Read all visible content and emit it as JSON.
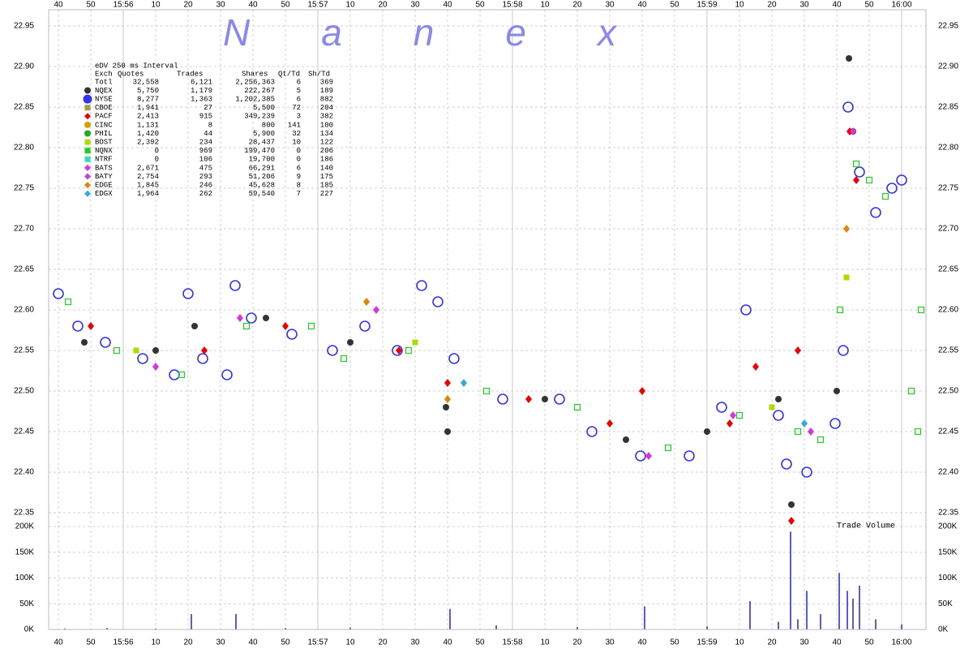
{
  "chart_data": [
    {
      "type": "scatter",
      "watermark": "Nanex",
      "xlim": [
        37,
        307.5
      ],
      "xticks": [
        40,
        50,
        {
          "value": 60,
          "label": "15:56"
        },
        {
          "value": 70,
          "label": "10"
        },
        {
          "value": 80,
          "label": "20"
        },
        {
          "value": 90,
          "label": "30"
        },
        {
          "value": 100,
          "label": "40"
        },
        {
          "value": 110,
          "label": "50"
        },
        {
          "value": 120,
          "label": "15:57"
        },
        {
          "value": 130,
          "label": "10"
        },
        {
          "value": 140,
          "label": "20"
        },
        {
          "value": 150,
          "label": "30"
        },
        {
          "value": 160,
          "label": "40"
        },
        {
          "value": 170,
          "label": "50"
        },
        {
          "value": 180,
          "label": "15:58"
        },
        {
          "value": 190,
          "label": "10"
        },
        {
          "value": 200,
          "label": "20"
        },
        {
          "value": 210,
          "label": "30"
        },
        {
          "value": 220,
          "label": "40"
        },
        {
          "value": 230,
          "label": "50"
        },
        {
          "value": 240,
          "label": "15:59"
        },
        {
          "value": 250,
          "label": "10"
        },
        {
          "value": 260,
          "label": "20"
        },
        {
          "value": 270,
          "label": "30"
        },
        {
          "value": 280,
          "label": "40"
        },
        {
          "value": 290,
          "label": "50"
        },
        {
          "value": 300,
          "label": "16:00"
        }
      ],
      "ylim": [
        22.34,
        22.97
      ],
      "yticks": [
        22.95,
        {
          "value": 22.9,
          "label": "22.90"
        },
        22.85,
        {
          "value": 22.8,
          "label": "22.80"
        },
        22.75,
        {
          "value": 22.7,
          "label": "22.70"
        },
        22.65,
        {
          "value": 22.6,
          "label": "22.60"
        },
        22.55,
        {
          "value": 22.5,
          "label": "22.50"
        },
        22.45,
        {
          "value": 22.4,
          "label": "22.40"
        },
        22.35
      ],
      "grid": true,
      "legend_title": "eDV 250 ms Interval",
      "columns": [
        "Exch",
        "Quotes",
        "Trades",
        "Shares",
        "Qt/Td",
        "Sh/Td"
      ],
      "total": {
        "name": "Totl",
        "quotes": "32,558",
        "trades": "6,121",
        "shares": "2,256,363",
        "qt_td": "6",
        "sh_td": "369"
      },
      "series": [
        {
          "name": "NQEX",
          "color": "#333333",
          "marker": "circle",
          "quotes": "5,750",
          "trades": "1,179",
          "shares": "222,267",
          "qt_td": "5",
          "sh_td": "189",
          "x": [
            48,
            70,
            82,
            104,
            130,
            159.5,
            160,
            190,
            215,
            240,
            262,
            266,
            280,
            283.75,
            285
          ],
          "values": [
            22.56,
            22.55,
            22.58,
            22.59,
            22.56,
            22.48,
            22.45,
            22.49,
            22.44,
            22.45,
            22.49,
            22.36,
            22.5,
            22.91,
            22.82
          ]
        },
        {
          "name": "NYSE",
          "color": "#3333ee",
          "marker": "ring",
          "quotes": "8,277",
          "trades": "1,363",
          "shares": "1,202,385",
          "qt_td": "6",
          "sh_td": "882",
          "x": [
            40,
            46,
            54.5,
            66,
            75.75,
            80,
            84.5,
            92,
            94.5,
            99.5,
            112,
            124.5,
            134.5,
            144.5,
            152,
            157,
            162,
            177,
            194.5,
            204.5,
            219.5,
            234.5,
            244.5,
            252,
            262,
            264.5,
            270.75,
            279.5,
            282,
            283.5,
            287,
            292,
            297,
            300
          ],
          "values": [
            22.62,
            22.58,
            22.56,
            22.54,
            22.52,
            22.62,
            22.54,
            22.52,
            22.63,
            22.59,
            22.57,
            22.55,
            22.58,
            22.55,
            22.63,
            22.61,
            22.54,
            22.49,
            22.49,
            22.45,
            22.42,
            22.42,
            22.48,
            22.6,
            22.47,
            22.41,
            22.4,
            22.46,
            22.55,
            22.85,
            22.77,
            22.72,
            22.75,
            22.76
          ]
        },
        {
          "name": "CBOE",
          "color": "#a0a040",
          "marker": "square",
          "quotes": "1,941",
          "trades": "27",
          "shares": "5,500",
          "qt_td": "72",
          "sh_td": "204"
        },
        {
          "name": "PACF",
          "color": "#ee0000",
          "marker": "diamond",
          "quotes": "2,413",
          "trades": "915",
          "shares": "349,239",
          "qt_td": "3",
          "sh_td": "382",
          "x": [
            50,
            85,
            110,
            145,
            160,
            185,
            210,
            220,
            247,
            255,
            266,
            268,
            284,
            286
          ],
          "values": [
            22.58,
            22.55,
            22.58,
            22.55,
            22.51,
            22.49,
            22.46,
            22.5,
            22.46,
            22.53,
            22.34,
            22.55,
            22.82,
            22.76
          ]
        },
        {
          "name": "CINC",
          "color": "#d8a000",
          "marker": "circle",
          "quotes": "1,131",
          "trades": "8",
          "shares": "800",
          "qt_td": "141",
          "sh_td": "100"
        },
        {
          "name": "PHIL",
          "color": "#22aa22",
          "marker": "circle",
          "quotes": "1,420",
          "trades": "44",
          "shares": "5,900",
          "qt_td": "32",
          "sh_td": "134"
        },
        {
          "name": "BOST",
          "color": "#aadd00",
          "marker": "square",
          "quotes": "2,392",
          "trades": "234",
          "shares": "28,437",
          "qt_td": "10",
          "sh_td": "122",
          "x": [
            64,
            150,
            260,
            283
          ],
          "values": [
            22.55,
            22.56,
            22.48,
            22.64
          ]
        },
        {
          "name": "NQNX",
          "color": "#22cc22",
          "marker": "open-square",
          "quotes": "0",
          "trades": "969",
          "shares": "199,470",
          "qt_td": "0",
          "sh_td": "206",
          "x": [
            43,
            58,
            78,
            98,
            118,
            128,
            148,
            172,
            200,
            228,
            250,
            268,
            275,
            281,
            286,
            290,
            295,
            303,
            305,
            306
          ],
          "values": [
            22.61,
            22.55,
            22.52,
            22.58,
            22.58,
            22.54,
            22.55,
            22.5,
            22.48,
            22.43,
            22.47,
            22.45,
            22.44,
            22.6,
            22.78,
            22.76,
            22.74,
            22.5,
            22.45,
            22.6
          ]
        },
        {
          "name": "NTRF",
          "color": "#33ddbb",
          "marker": "square",
          "quotes": "0",
          "trades": "106",
          "shares": "19,700",
          "qt_td": "0",
          "sh_td": "186"
        },
        {
          "name": "BATS",
          "color": "#dd33dd",
          "marker": "diamond",
          "quotes": "2,671",
          "trades": "475",
          "shares": "66,291",
          "qt_td": "6",
          "sh_td": "140",
          "x": [
            70,
            96,
            138,
            222,
            248,
            272,
            285
          ],
          "values": [
            22.53,
            22.59,
            22.6,
            22.42,
            22.47,
            22.45,
            22.82
          ]
        },
        {
          "name": "BATY",
          "color": "#bb44dd",
          "marker": "diamond",
          "quotes": "2,754",
          "trades": "293",
          "shares": "51,206",
          "qt_td": "9",
          "sh_td": "175"
        },
        {
          "name": "EDGE",
          "color": "#dd8800",
          "marker": "diamond",
          "quotes": "1,845",
          "trades": "246",
          "shares": "45,628",
          "qt_td": "8",
          "sh_td": "185",
          "x": [
            135,
            160,
            283
          ],
          "values": [
            22.61,
            22.49,
            22.7
          ]
        },
        {
          "name": "EDGX",
          "color": "#33aadd",
          "marker": "diamond",
          "quotes": "1,964",
          "trades": "262",
          "shares": "59,540",
          "qt_td": "7",
          "sh_td": "227",
          "x": [
            165,
            270
          ],
          "values": [
            22.51,
            22.46
          ]
        }
      ]
    },
    {
      "type": "bar",
      "annotation": "Trade Volume",
      "color": "#3333cc",
      "xlim": [
        37,
        307.5
      ],
      "xticks": [
        40,
        50,
        {
          "value": 60,
          "label": "15:56"
        },
        {
          "value": 70,
          "label": "10"
        },
        {
          "value": 80,
          "label": "20"
        },
        {
          "value": 90,
          "label": "30"
        },
        {
          "value": 100,
          "label": "40"
        },
        {
          "value": 110,
          "label": "50"
        },
        {
          "value": 120,
          "label": "15:57"
        },
        {
          "value": 130,
          "label": "10"
        },
        {
          "value": 140,
          "label": "20"
        },
        {
          "value": 150,
          "label": "30"
        },
        {
          "value": 160,
          "label": "40"
        },
        {
          "value": 170,
          "label": "50"
        },
        {
          "value": 180,
          "label": "15:58"
        },
        {
          "value": 190,
          "label": "10"
        },
        {
          "value": 200,
          "label": "20"
        },
        {
          "value": 210,
          "label": "30"
        },
        {
          "value": 220,
          "label": "40"
        },
        {
          "value": 230,
          "label": "50"
        },
        {
          "value": 240,
          "label": "15:59"
        },
        {
          "value": 250,
          "label": "10"
        },
        {
          "value": 260,
          "label": "20"
        },
        {
          "value": 270,
          "label": "30"
        },
        {
          "value": 280,
          "label": "40"
        },
        {
          "value": 290,
          "label": "50"
        },
        {
          "value": 300,
          "label": "16:00"
        }
      ],
      "ylim": [
        0,
        211000
      ],
      "yticks": [
        {
          "value": 0,
          "label": "0K"
        },
        {
          "value": 50000,
          "label": "50K"
        },
        {
          "value": 100000,
          "label": "100K"
        },
        {
          "value": 150000,
          "label": "150K"
        },
        {
          "value": 200000,
          "label": "200K"
        }
      ],
      "grid": true,
      "x": [
        42,
        55,
        70,
        81,
        94.75,
        110,
        130,
        160.75,
        175,
        200,
        220.75,
        240,
        253.25,
        262,
        265.75,
        268,
        270.75,
        275,
        280.75,
        283.25,
        285,
        287,
        292,
        300
      ],
      "values": [
        2000,
        3000,
        2000,
        30000,
        30000,
        3000,
        4000,
        40000,
        8000,
        5000,
        45000,
        6000,
        55000,
        15000,
        190000,
        20000,
        75000,
        30000,
        110000,
        75000,
        60000,
        85000,
        20000,
        10000
      ]
    }
  ]
}
